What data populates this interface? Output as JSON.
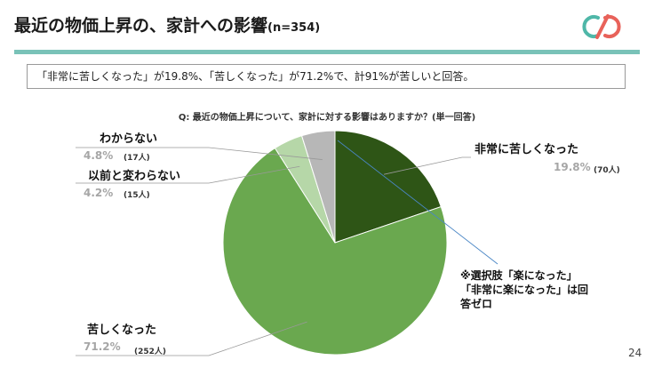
{
  "header": {
    "title": "最近の物価上昇の、家計への影響",
    "sample": "(n=354)",
    "logo_icon": "cp-logo-icon",
    "accent_color": "#79c2b8"
  },
  "summary": "「非常に苦しくなった」が19.8%、「苦しくなった」が71.2%で、計91%が苦しいと回答。",
  "question": "Q: 最近の物価上昇について、家計に対する影響はありますか？(単一回答)",
  "note": {
    "line1": "※選択肢「楽になった」",
    "line2": "「非常に楽になった」は回",
    "line3": "答ゼロ"
  },
  "page_number": "24",
  "chart_data": {
    "type": "pie",
    "title": "",
    "start_angle_deg": 0,
    "direction": "clockwise",
    "slices": [
      {
        "label": "非常に苦しくなった",
        "percent": 19.8,
        "percent_label": "19.8%",
        "count": 70,
        "count_label": "(70人)",
        "color": "#2e5516"
      },
      {
        "label": "苦しくなった",
        "percent": 71.2,
        "percent_label": "71.2%",
        "count": 252,
        "count_label": "(252人)",
        "color": "#6aa84f"
      },
      {
        "label": "以前と変わらない",
        "percent": 4.2,
        "percent_label": "4.2%",
        "count": 15,
        "count_label": "(15人)",
        "color": "#b6d7a8"
      },
      {
        "label": "わからない",
        "percent": 4.8,
        "percent_label": "4.8%",
        "count": 17,
        "count_label": "(17人)",
        "color": "#b7b7b7"
      }
    ]
  }
}
